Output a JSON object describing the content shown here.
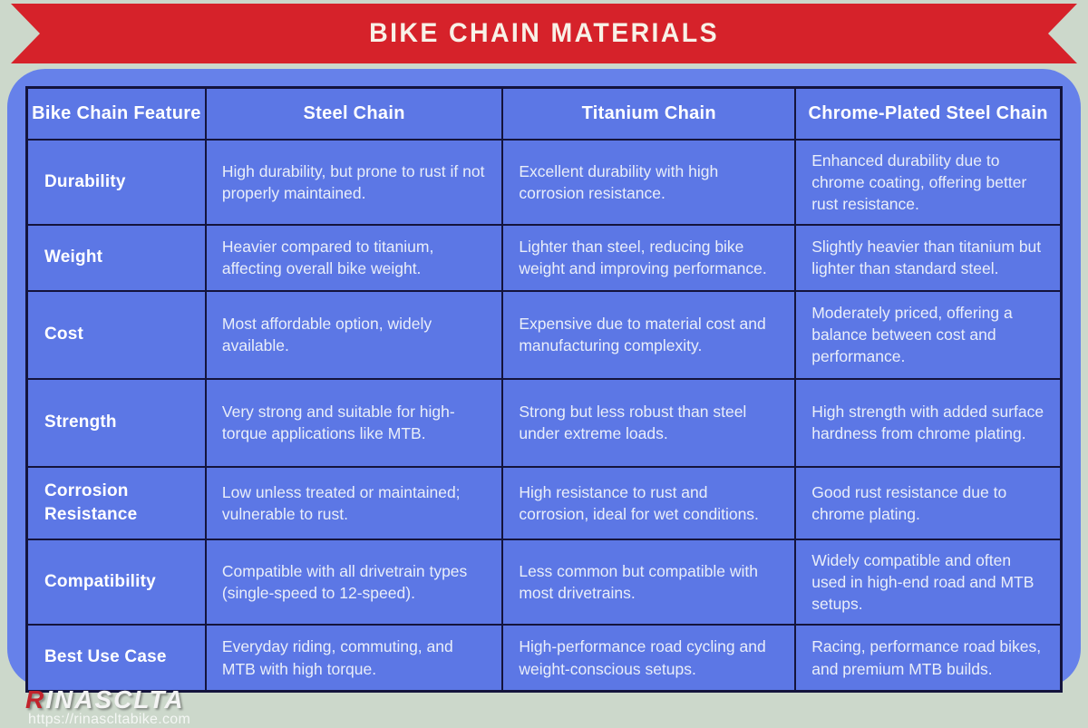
{
  "banner": {
    "title": "BIKE CHAIN MATERIALS"
  },
  "table": {
    "columns": [
      "Bike Chain Feature",
      "Steel Chain",
      "Titanium Chain",
      "Chrome-Plated Steel Chain"
    ],
    "rows": [
      {
        "feature": "Durability",
        "steel": "High durability, but prone to rust if not properly maintained.",
        "titanium": "Excellent durability with high corrosion resistance.",
        "chrome": "Enhanced durability due to chrome coating, offering better rust resistance."
      },
      {
        "feature": "Weight",
        "steel": "Heavier compared to titanium, affecting overall bike weight.",
        "titanium": "Lighter than steel, reducing bike weight and improving performance.",
        "chrome": "Slightly heavier than titanium but lighter than standard steel."
      },
      {
        "feature": "Cost",
        "steel": "Most affordable option, widely available.",
        "titanium": "Expensive due to material cost and manufacturing complexity.",
        "chrome": "Moderately priced, offering a balance between cost and performance."
      },
      {
        "feature": "Strength",
        "steel": "Very strong and suitable for high-torque applications like MTB.",
        "titanium": "Strong but less robust than steel under extreme loads.",
        "chrome": "High strength with added surface hardness from chrome plating."
      },
      {
        "feature": "Corrosion Resistance",
        "steel": "Low unless treated or maintained; vulnerable to rust.",
        "titanium": "High resistance to rust and corrosion, ideal for wet conditions.",
        "chrome": "Good rust resistance due to chrome plating."
      },
      {
        "feature": "Compatibility",
        "steel": "Compatible with all drivetrain types (single-speed to 12-speed).",
        "titanium": "Less common but compatible with most drivetrains.",
        "chrome": "Widely compatible and often used in high-end road and MTB setups."
      },
      {
        "feature": "Best Use Case",
        "steel": "Everyday riding, commuting, and MTB with high torque.",
        "titanium": "High-performance road cycling and weight-conscious setups.",
        "chrome": "Racing, performance road bikes, and premium MTB builds."
      }
    ]
  },
  "footer": {
    "brand_first_letter": "R",
    "brand_rest": "INASCLTA",
    "url": "https://rinascltabike.com"
  },
  "colors": {
    "background": "#ccd8cb",
    "ribbon_red": "#d6222a",
    "panel_blue": "#6681ea",
    "cell_blue": "#5c77e5",
    "border_navy": "#14143c",
    "title_text": "#f8f1e7",
    "cell_text": "#e9eef9",
    "logo_red": "#c2232b"
  },
  "chart_data": {
    "type": "table",
    "title": "BIKE CHAIN MATERIALS",
    "columns": [
      "Bike Chain Feature",
      "Steel Chain",
      "Titanium Chain",
      "Chrome-Plated Steel Chain"
    ],
    "rows": [
      [
        "Durability",
        "High durability, but prone to rust if not properly maintained.",
        "Excellent durability with high corrosion resistance.",
        "Enhanced durability due to chrome coating, offering better rust resistance."
      ],
      [
        "Weight",
        "Heavier compared to titanium, affecting overall bike weight.",
        "Lighter than steel, reducing bike weight and improving performance.",
        "Slightly heavier than titanium but lighter than standard steel."
      ],
      [
        "Cost",
        "Most affordable option, widely available.",
        "Expensive due to material cost and manufacturing complexity.",
        "Moderately priced, offering a balance between cost and performance."
      ],
      [
        "Strength",
        "Very strong and suitable for high-torque applications like MTB.",
        "Strong but less robust than steel under extreme loads.",
        "High strength with added surface hardness from chrome plating."
      ],
      [
        "Corrosion Resistance",
        "Low unless treated or maintained; vulnerable to rust.",
        "High resistance to rust and corrosion, ideal for wet conditions.",
        "Good rust resistance due to chrome plating."
      ],
      [
        "Compatibility",
        "Compatible with all drivetrain types (single-speed to 12-speed).",
        "Less common but compatible with most drivetrains.",
        "Widely compatible and often used in high-end road and MTB setups."
      ],
      [
        "Best Use Case",
        "Everyday riding, commuting, and MTB with high torque.",
        "High-performance road cycling and weight-conscious setups.",
        "Racing, performance road bikes, and premium MTB builds."
      ]
    ]
  }
}
